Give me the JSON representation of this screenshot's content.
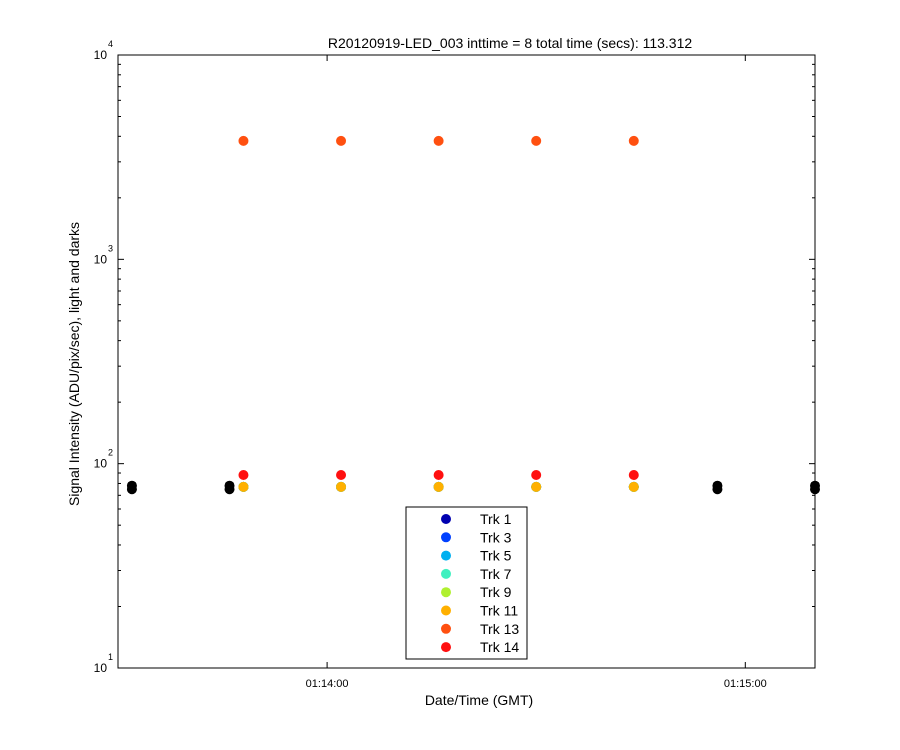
{
  "chart_data": {
    "type": "scatter",
    "title": "R20120919-LED_003 inttime = 8 total time (secs): 113.312",
    "xlabel": "Date/Time (GMT)",
    "ylabel": "Signal Intensity (ADU/pix/sec), light and darks",
    "x_scale": "time",
    "y_scale": "log",
    "xlim": [
      "01:13:30",
      "01:15:10"
    ],
    "ylim": [
      10,
      10000
    ],
    "x_ticks": [
      {
        "value": "01:14:00",
        "label": "01:14:00"
      },
      {
        "value": "01:15:00",
        "label": "01:15:00"
      }
    ],
    "y_ticks": [
      {
        "base": "10",
        "exp": "1",
        "value": 10
      },
      {
        "base": "10",
        "exp": "2",
        "value": 100
      },
      {
        "base": "10",
        "exp": "3",
        "value": 1000
      },
      {
        "base": "10",
        "exp": "4",
        "value": 10000
      }
    ],
    "grid": false,
    "legend_position": "bottom-center",
    "series": [
      {
        "name": "Trk 1",
        "color": "#0000b0",
        "x": [
          "01:13:48",
          "01:14:02",
          "01:14:16",
          "01:14:30",
          "01:14:44"
        ],
        "y": [
          77,
          77,
          77,
          77,
          77
        ]
      },
      {
        "name": "Trk 3",
        "color": "#0040ff",
        "x": [
          "01:13:48",
          "01:14:02",
          "01:14:16",
          "01:14:30",
          "01:14:44"
        ],
        "y": [
          77,
          77,
          77,
          77,
          77
        ]
      },
      {
        "name": "Trk 5",
        "color": "#00b0f0",
        "x": [
          "01:13:48",
          "01:14:02",
          "01:14:16",
          "01:14:30",
          "01:14:44"
        ],
        "y": [
          77,
          77,
          77,
          77,
          77
        ]
      },
      {
        "name": "Trk 7",
        "color": "#40f0c0",
        "x": [
          "01:13:48",
          "01:14:02",
          "01:14:16",
          "01:14:30",
          "01:14:44"
        ],
        "y": [
          77,
          77,
          77,
          77,
          77
        ]
      },
      {
        "name": "Trk 9",
        "color": "#b0f030",
        "x": [
          "01:13:48",
          "01:14:02",
          "01:14:16",
          "01:14:30",
          "01:14:44"
        ],
        "y": [
          77,
          77,
          77,
          77,
          77
        ]
      },
      {
        "name": "Trk 11",
        "color": "#ffb000",
        "x": [
          "01:13:48",
          "01:14:02",
          "01:14:16",
          "01:14:30",
          "01:14:44"
        ],
        "y": [
          77,
          77,
          77,
          77,
          77
        ]
      },
      {
        "name": "Trk 13",
        "color": "#ff5010",
        "x": [
          "01:13:48",
          "01:14:02",
          "01:14:16",
          "01:14:30",
          "01:14:44"
        ],
        "y": [
          3800,
          3800,
          3800,
          3800,
          3800
        ]
      },
      {
        "name": "Trk 14",
        "color": "#ff1010",
        "x": [
          "01:13:48",
          "01:14:02",
          "01:14:16",
          "01:14:30",
          "01:14:44"
        ],
        "y": [
          88,
          88,
          88,
          88,
          88
        ]
      }
    ],
    "darks": {
      "color": "#000000",
      "x": [
        "01:13:32",
        "01:13:32",
        "01:13:46",
        "01:13:46",
        "01:14:56",
        "01:14:56",
        "01:15:10",
        "01:15:10"
      ],
      "y": [
        75,
        78,
        75,
        78,
        75,
        78,
        75,
        78
      ]
    }
  }
}
